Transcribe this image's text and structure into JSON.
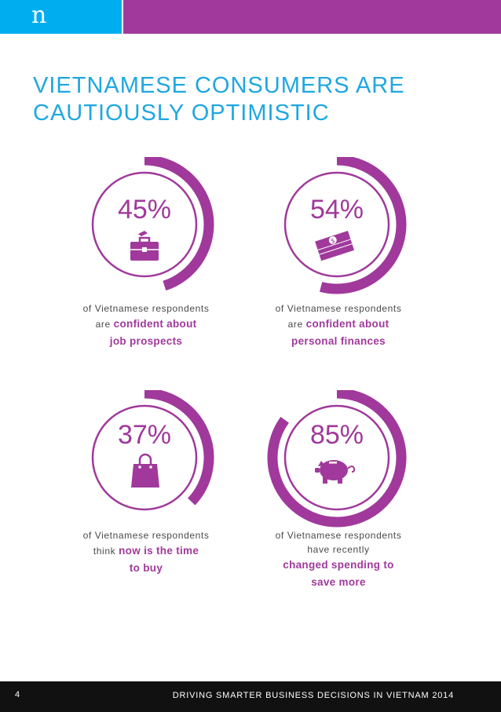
{
  "header": {
    "logo_letter": "n"
  },
  "title": {
    "line1": "VIETNAMESE CONSUMERS ARE",
    "line2": "CAUTIOUSLY OPTIMISTIC"
  },
  "stats": [
    {
      "value": 45,
      "percent": "45%",
      "icon": "briefcase-icon",
      "line1": "of Vietnamese respondents",
      "prefix": "are",
      "highlight1": "confident about",
      "highlight2": "job prospects"
    },
    {
      "value": 54,
      "percent": "54%",
      "icon": "money-stack-icon",
      "line1": "of Vietnamese respondents",
      "prefix": "are",
      "highlight1": "confident about",
      "highlight2": "personal finances"
    },
    {
      "value": 37,
      "percent": "37%",
      "icon": "shopping-bag-icon",
      "line1": "of Vietnamese respondents",
      "prefix": "think",
      "highlight1": "now is the time",
      "highlight2": "to buy"
    },
    {
      "value": 85,
      "percent": "85%",
      "icon": "piggy-bank-icon",
      "line1": "of Vietnamese respondents",
      "line2": "have recently",
      "highlight1": "changed spending to",
      "highlight2": "save more"
    }
  ],
  "footer": {
    "page": "4",
    "text": "DRIVING SMARTER BUSINESS DECISIONS IN VIETNAM 2014"
  },
  "colors": {
    "purple": "#a0399b",
    "blue": "#00aeef",
    "title_blue": "#1fa7e0",
    "footer_bg": "#111111"
  }
}
